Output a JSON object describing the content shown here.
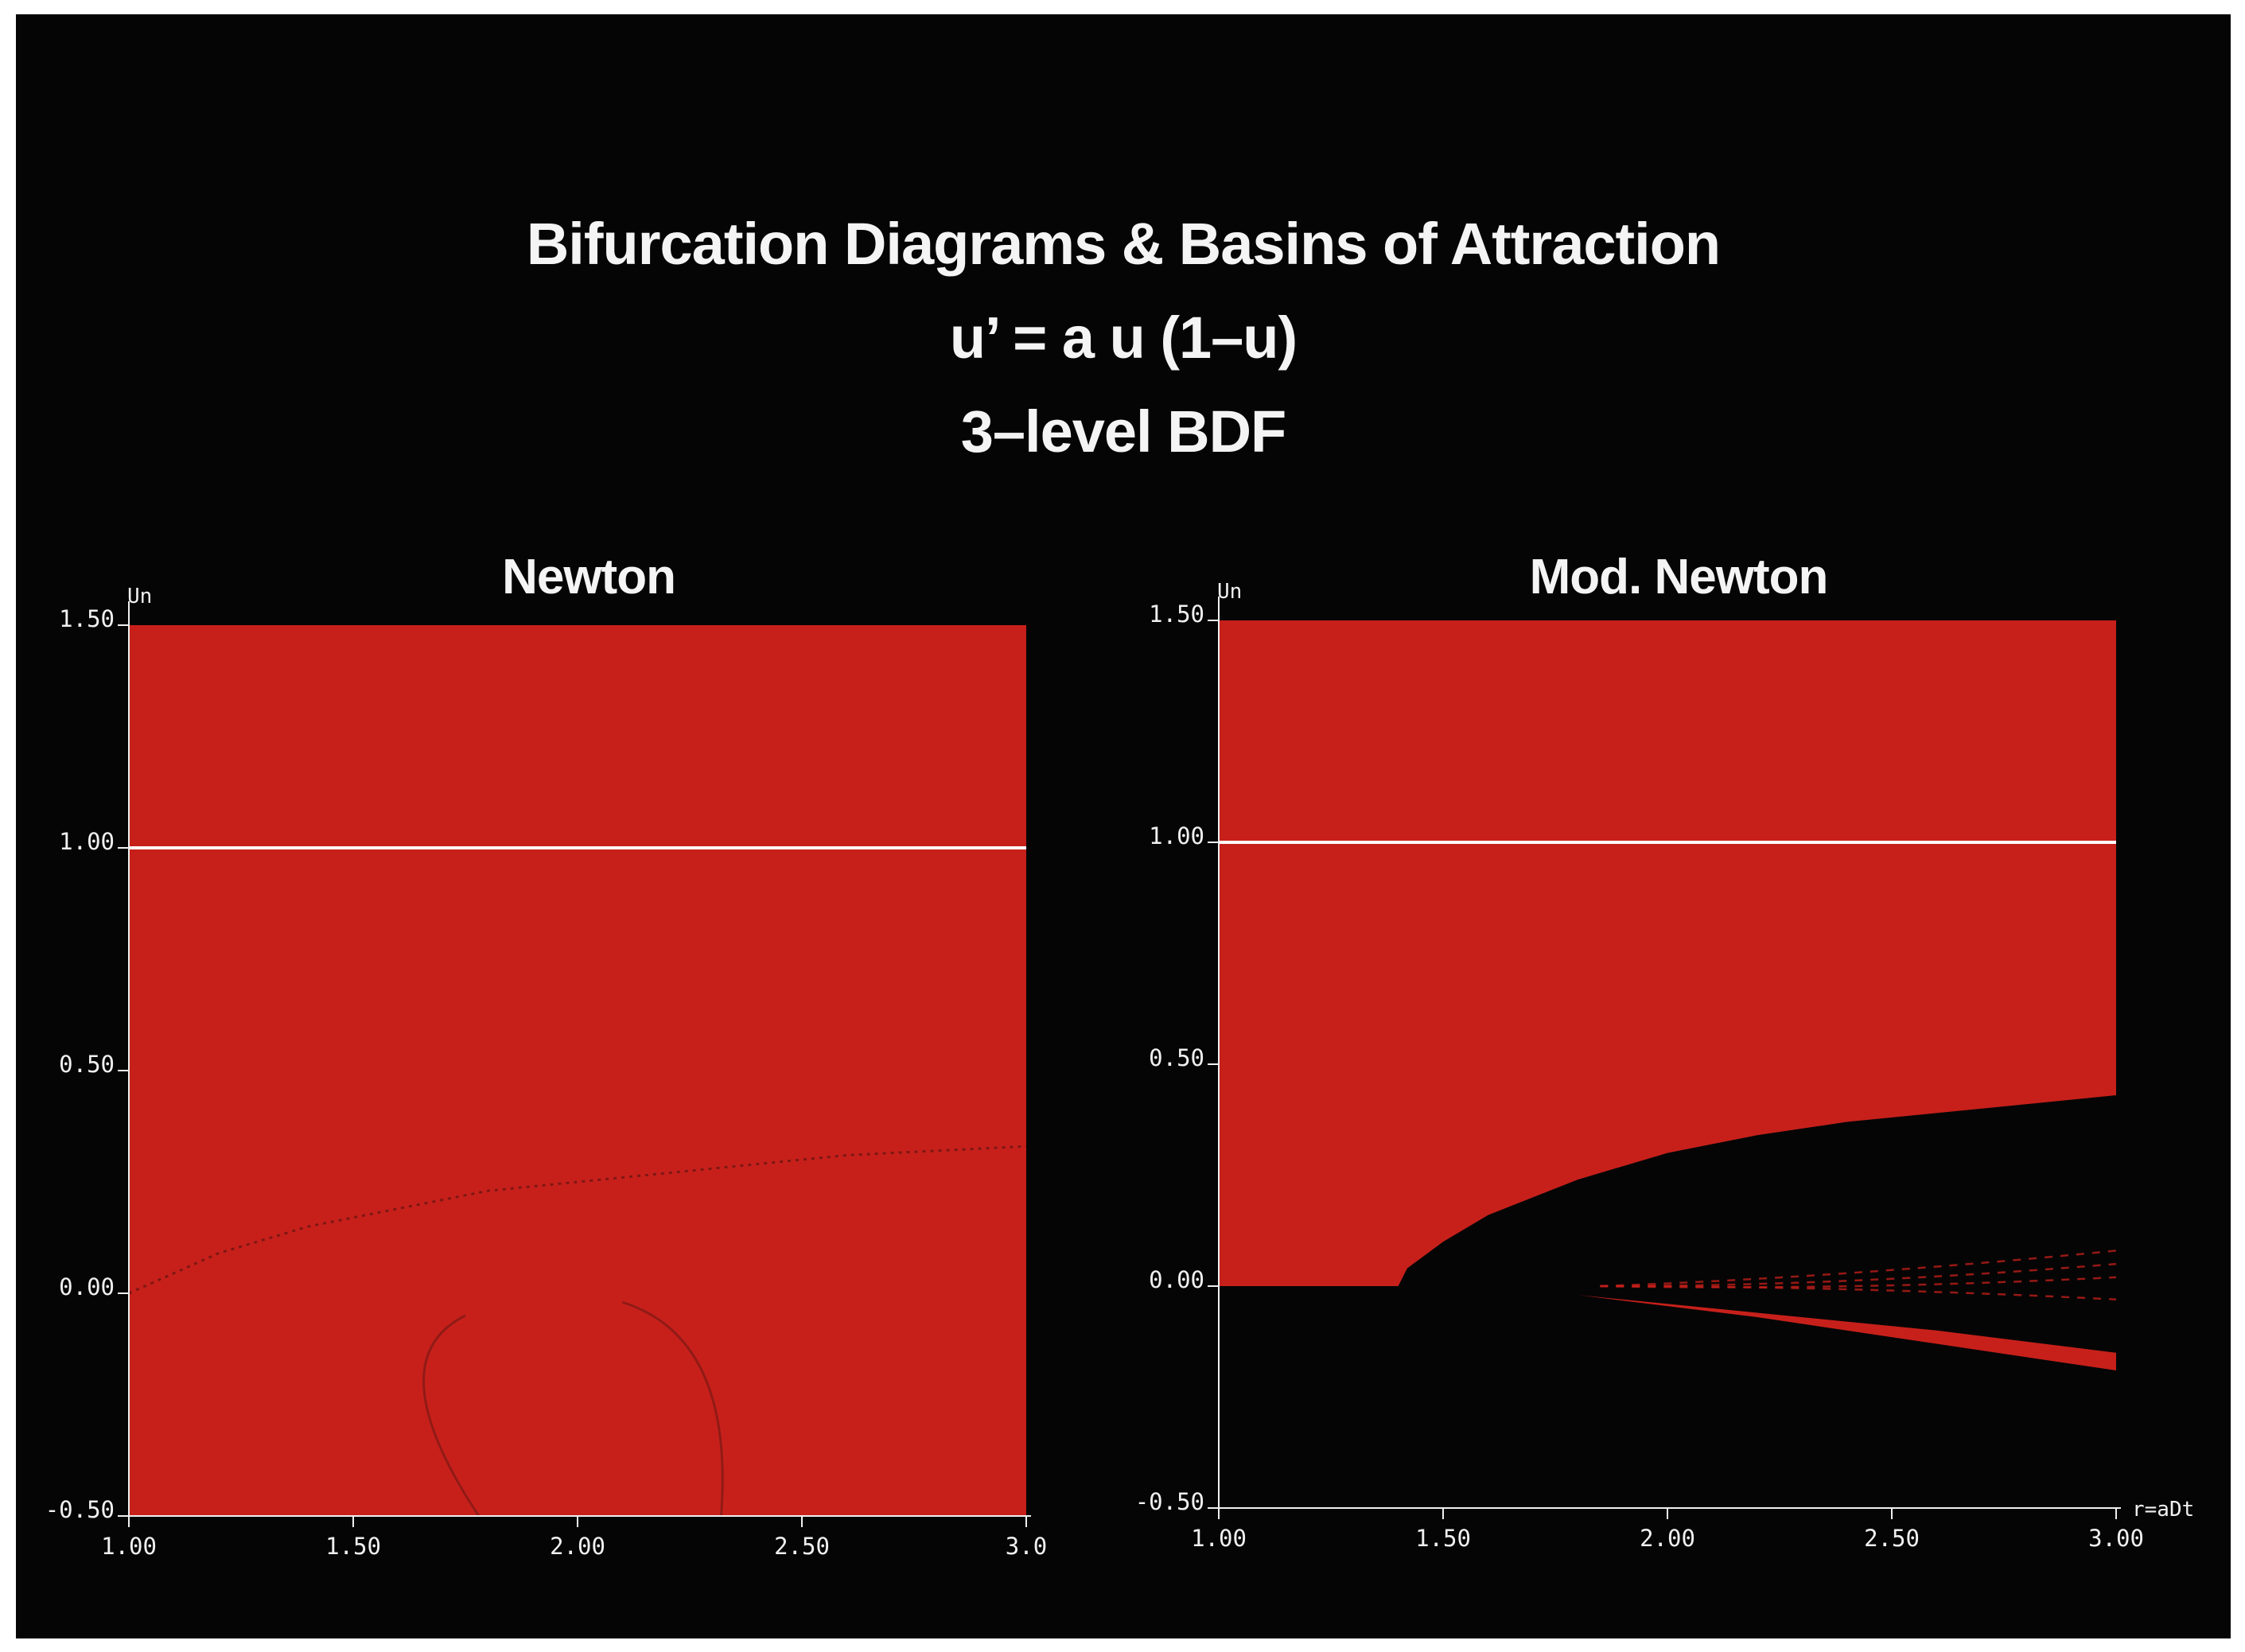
{
  "titles": {
    "line1": "Bifurcation Diagrams  &  Basins of Attraction",
    "line2": "u’ = a u (1–u)",
    "line3": "3–level BDF"
  },
  "colors": {
    "background": "#050505",
    "basin": "#c7201b",
    "fixed_point_line": "#ffffff",
    "axis": "#f0f0f0"
  },
  "chart_data": [
    {
      "type": "heatmap",
      "title": "Newton",
      "ylabel": "Un",
      "xlabel": "",
      "xlim": [
        1.0,
        3.0
      ],
      "ylim": [
        -0.5,
        1.5
      ],
      "x_ticks": [
        "1.00",
        "1.50",
        "2.00",
        "2.50",
        "3.0"
      ],
      "y_ticks": [
        "-0.50",
        "0.00",
        "0.50",
        "1.00",
        "1.50"
      ],
      "fixed_point_u": 1.0,
      "basin": "entire region converges (red)",
      "faint_boundary_curve": {
        "x": [
          1.0,
          1.2,
          1.4,
          1.6,
          1.8,
          2.0,
          2.2,
          2.4,
          2.6,
          2.8,
          3.0
        ],
        "y": [
          0.0,
          0.09,
          0.15,
          0.19,
          0.23,
          0.25,
          0.27,
          0.29,
          0.31,
          0.32,
          0.33
        ]
      }
    },
    {
      "type": "heatmap",
      "title": "Mod. Newton",
      "ylabel": "Un",
      "xlabel": "r=aDt",
      "xlim": [
        1.0,
        3.0
      ],
      "ylim": [
        -0.5,
        1.5
      ],
      "x_ticks": [
        "1.00",
        "1.50",
        "2.00",
        "2.50",
        "3.00"
      ],
      "y_ticks": [
        "-0.50",
        "0.00",
        "0.50",
        "1.00",
        "1.50"
      ],
      "fixed_point_u": 1.0,
      "basin_lower_boundary": {
        "x": [
          1.0,
          1.4,
          1.42,
          1.5,
          1.6,
          1.8,
          2.0,
          2.2,
          2.4,
          2.6,
          2.8,
          3.0
        ],
        "y": [
          0.0,
          0.0,
          0.04,
          0.1,
          0.16,
          0.24,
          0.3,
          0.34,
          0.37,
          0.39,
          0.41,
          0.43
        ]
      },
      "negative_branch": {
        "x": [
          1.8,
          2.2,
          2.6,
          3.0
        ],
        "upper": [
          -0.02,
          -0.06,
          -0.1,
          -0.15
        ],
        "lower": [
          -0.02,
          -0.07,
          -0.13,
          -0.19
        ]
      }
    }
  ]
}
